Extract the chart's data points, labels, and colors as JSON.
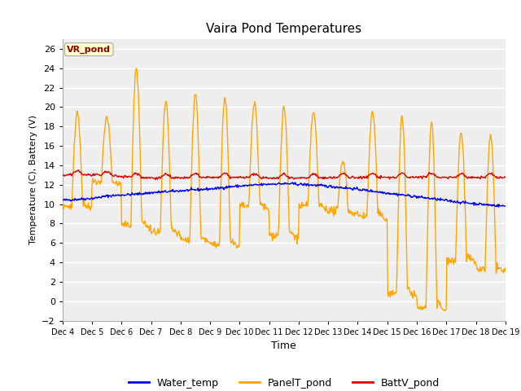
{
  "title": "Vaira Pond Temperatures",
  "xlabel": "Time",
  "ylabel": "Temperature (C), Battery (V)",
  "ylim": [
    -2,
    27
  ],
  "yticks": [
    -2,
    0,
    2,
    4,
    6,
    8,
    10,
    12,
    14,
    16,
    18,
    20,
    22,
    24,
    26
  ],
  "fig_bg_color": "#ffffff",
  "plot_bg_color": "#eeeeee",
  "annotation_text": "VR_pond",
  "annotation_color": "#8b0000",
  "annotation_bg": "#ffffcc",
  "annotation_edge": "#aaaaaa",
  "water_color": "#0000ee",
  "panel_color": "#ffa500",
  "batt_color": "#dd0000",
  "line_width": 1.0,
  "x_tick_labels": [
    "Dec 4",
    "Dec 5",
    "Dec 6",
    "Dec 7",
    "Dec 8",
    "Dec 9",
    "Dec 10",
    "Dec 11",
    "Dec 12",
    "Dec 13",
    "Dec 14",
    "Dec 15",
    "Dec 16",
    "Dec 17",
    "Dec 18",
    "Dec 19"
  ],
  "legend_items": [
    "Water_temp",
    "PanelT_pond",
    "BattV_pond"
  ],
  "panel_peaks": [
    19.5,
    19.0,
    24.0,
    20.5,
    21.5,
    21.0,
    20.5,
    20.0,
    19.5,
    14.5,
    19.5,
    19.0,
    18.5,
    17.5,
    17.0
  ],
  "panel_nights": [
    9.5,
    12.0,
    7.5,
    6.8,
    6.0,
    5.5,
    9.5,
    6.5,
    9.5,
    9.0,
    8.5,
    0.5,
    -1.0,
    4.0,
    3.0
  ],
  "water_vals": [
    10.4,
    10.5,
    10.6,
    10.85,
    10.95,
    11.05,
    11.2,
    11.3,
    11.4,
    11.5,
    11.6,
    11.8,
    11.9,
    12.0,
    12.1,
    12.1,
    12.0,
    11.9,
    11.75,
    11.6,
    11.4,
    11.2,
    11.0,
    10.8,
    10.6,
    10.4,
    10.2,
    10.05,
    9.9,
    9.8
  ],
  "batt_vals": [
    13.0,
    13.1,
    13.05,
    13.0,
    12.9,
    12.8,
    12.75,
    12.75,
    12.75,
    12.8,
    12.8,
    12.8,
    12.8,
    12.75,
    12.75,
    12.75,
    12.75,
    12.75,
    12.8,
    12.8,
    12.8,
    12.8,
    12.8,
    12.85,
    12.85,
    12.8,
    12.8,
    12.8,
    12.8,
    12.8
  ]
}
